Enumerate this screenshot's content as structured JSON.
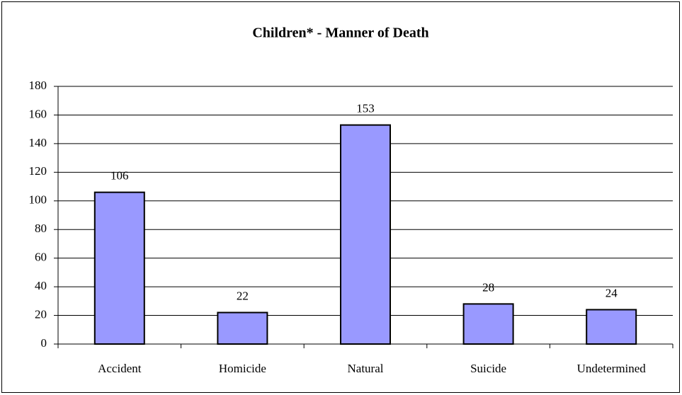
{
  "chart_data": {
    "type": "bar",
    "title": "Children* - Manner of Death",
    "categories": [
      "Accident",
      "Homicide",
      "Natural",
      "Suicide",
      "Undetermined"
    ],
    "values": [
      106,
      22,
      153,
      28,
      24
    ],
    "color": "#9999ff",
    "ylim": [
      0,
      180
    ],
    "yticks": [
      0,
      20,
      40,
      60,
      80,
      100,
      120,
      140,
      160,
      180
    ],
    "grid": true
  }
}
